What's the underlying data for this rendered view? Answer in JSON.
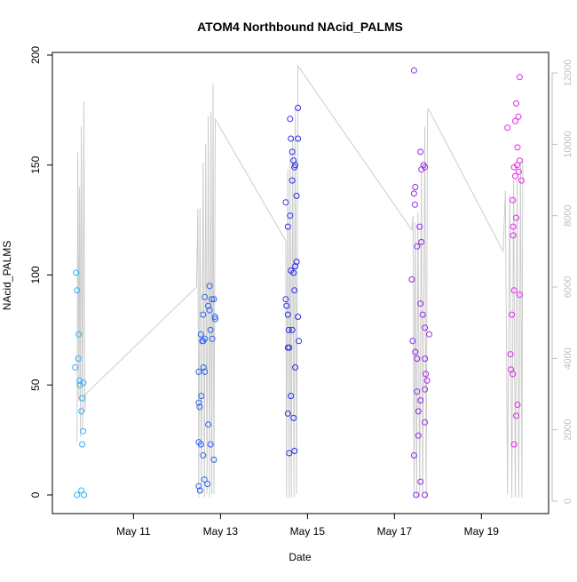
{
  "chart_data": {
    "type": "scatter",
    "title": "ATOM4 Northbound NAcid_PALMS",
    "xlabel": "Date",
    "ylabel": "NAcid_PALMS",
    "x_unit": "days, May 2017-style calendar day (May 11 = 11.0)",
    "xlim": [
      9.4,
      20.3
    ],
    "ylim": [
      0,
      200
    ],
    "y_ticks": [
      0,
      50,
      100,
      150,
      200
    ],
    "x_ticks": [
      {
        "value": 11,
        "label": "May 11"
      },
      {
        "value": 13,
        "label": "May 13"
      },
      {
        "value": 15,
        "label": "May 15"
      },
      {
        "value": 17,
        "label": "May 17"
      },
      {
        "value": 19,
        "label": "May 19"
      }
    ],
    "right_axis": {
      "ylim": [
        0,
        12500
      ],
      "ticks": [
        0,
        2000,
        4000,
        6000,
        8000,
        10000,
        12000
      ],
      "color": "#bebebe",
      "line_color": "#cccccc"
    },
    "grid": false,
    "legend": "none",
    "point_color_scale": [
      "#29b6f6",
      "#2a2ae8",
      "#ee22ee"
    ],
    "series": [
      {
        "values": [
          [
            9.7,
            0
          ],
          [
            9.8,
            2
          ],
          [
            9.68,
            101
          ],
          [
            9.7,
            93
          ],
          [
            9.74,
            73
          ],
          [
            9.73,
            62
          ],
          [
            9.66,
            58
          ],
          [
            9.76,
            52
          ],
          [
            9.85,
            51
          ],
          [
            9.77,
            50
          ],
          [
            9.82,
            44
          ],
          [
            9.8,
            38
          ],
          [
            9.84,
            29
          ],
          [
            9.82,
            23
          ],
          [
            9.86,
            0
          ]
        ]
      },
      {
        "values": [
          [
            12.5,
            4
          ],
          [
            12.53,
            2
          ],
          [
            12.7,
            5
          ],
          [
            12.63,
            7
          ],
          [
            12.85,
            16
          ],
          [
            12.6,
            18
          ],
          [
            12.5,
            24
          ],
          [
            12.55,
            23
          ],
          [
            12.77,
            23
          ],
          [
            12.72,
            32
          ],
          [
            12.52,
            40
          ],
          [
            12.56,
            45
          ],
          [
            12.5,
            42
          ],
          [
            12.64,
            56
          ],
          [
            12.5,
            56
          ],
          [
            12.61,
            58
          ],
          [
            12.58,
            70
          ],
          [
            12.6,
            70
          ],
          [
            12.64,
            71
          ],
          [
            12.81,
            71
          ],
          [
            12.55,
            73
          ],
          [
            12.77,
            75
          ],
          [
            12.88,
            80
          ],
          [
            12.87,
            81
          ],
          [
            12.6,
            82
          ],
          [
            12.75,
            84
          ],
          [
            12.72,
            86
          ],
          [
            12.8,
            89
          ],
          [
            12.85,
            89
          ],
          [
            12.64,
            90
          ],
          [
            12.75,
            95
          ]
        ]
      },
      {
        "values": [
          [
            14.5,
            133
          ],
          [
            14.6,
            127
          ],
          [
            14.55,
            122
          ],
          [
            14.5,
            89
          ],
          [
            14.55,
            82
          ],
          [
            14.52,
            86
          ],
          [
            14.55,
            67
          ],
          [
            14.58,
            67
          ],
          [
            14.57,
            75
          ],
          [
            14.65,
            75
          ],
          [
            14.55,
            37
          ],
          [
            14.62,
            45
          ],
          [
            14.58,
            19
          ],
          [
            14.68,
            35
          ],
          [
            14.7,
            20
          ],
          [
            14.72,
            58
          ],
          [
            14.7,
            93
          ],
          [
            14.68,
            101
          ],
          [
            14.62,
            102
          ],
          [
            14.72,
            104
          ],
          [
            14.75,
            106
          ],
          [
            14.8,
            70
          ],
          [
            14.78,
            81
          ],
          [
            14.65,
            143
          ],
          [
            14.7,
            149
          ],
          [
            14.72,
            150
          ],
          [
            14.68,
            152
          ],
          [
            14.65,
            156
          ],
          [
            14.62,
            162
          ],
          [
            14.78,
            162
          ],
          [
            14.6,
            171
          ],
          [
            14.78,
            176
          ],
          [
            14.75,
            136
          ]
        ]
      },
      {
        "values": [
          [
            17.45,
            193
          ],
          [
            17.6,
            156
          ],
          [
            17.7,
            149
          ],
          [
            17.62,
            148
          ],
          [
            17.67,
            150
          ],
          [
            17.48,
            140
          ],
          [
            17.45,
            137
          ],
          [
            17.47,
            132
          ],
          [
            17.58,
            122
          ],
          [
            17.62,
            115
          ],
          [
            17.52,
            113
          ],
          [
            17.4,
            98
          ],
          [
            17.6,
            87
          ],
          [
            17.65,
            82
          ],
          [
            17.7,
            76
          ],
          [
            17.8,
            73
          ],
          [
            17.42,
            70
          ],
          [
            17.48,
            65
          ],
          [
            17.52,
            62
          ],
          [
            17.7,
            62
          ],
          [
            17.72,
            55
          ],
          [
            17.75,
            52
          ],
          [
            17.7,
            48
          ],
          [
            17.52,
            47
          ],
          [
            17.6,
            43
          ],
          [
            17.55,
            38
          ],
          [
            17.7,
            33
          ],
          [
            17.55,
            27
          ],
          [
            17.45,
            18
          ],
          [
            17.6,
            6
          ],
          [
            17.5,
            0
          ],
          [
            17.7,
            0
          ]
        ]
      },
      {
        "values": [
          [
            19.88,
            190
          ],
          [
            19.8,
            178
          ],
          [
            19.85,
            172
          ],
          [
            19.78,
            170
          ],
          [
            19.6,
            167
          ],
          [
            19.83,
            158
          ],
          [
            19.88,
            152
          ],
          [
            19.75,
            149
          ],
          [
            19.82,
            150
          ],
          [
            19.92,
            143
          ],
          [
            19.78,
            145
          ],
          [
            19.86,
            147
          ],
          [
            19.72,
            134
          ],
          [
            19.8,
            126
          ],
          [
            19.73,
            122
          ],
          [
            19.73,
            118
          ],
          [
            19.75,
            93
          ],
          [
            19.88,
            91
          ],
          [
            19.7,
            82
          ],
          [
            19.67,
            64
          ],
          [
            19.68,
            57
          ],
          [
            19.72,
            55
          ],
          [
            19.83,
            41
          ],
          [
            19.8,
            36
          ],
          [
            19.75,
            23
          ]
        ]
      }
    ],
    "secondary_line": {
      "points": [
        [
          9.7,
          1650
        ],
        [
          9.72,
          9800
        ],
        [
          9.74,
          2800
        ],
        [
          9.76,
          8800
        ],
        [
          9.78,
          1800
        ],
        [
          9.8,
          10500
        ],
        [
          9.83,
          2000
        ],
        [
          9.86,
          11200
        ],
        [
          9.88,
          2500
        ],
        [
          9.9,
          3000
        ],
        [
          12.45,
          6000
        ],
        [
          12.48,
          8200
        ],
        [
          12.5,
          100
        ],
        [
          12.53,
          8200
        ],
        [
          12.56,
          200
        ],
        [
          12.6,
          9500
        ],
        [
          12.63,
          100
        ],
        [
          12.66,
          10000
        ],
        [
          12.69,
          200
        ],
        [
          12.72,
          10800
        ],
        [
          12.75,
          100
        ],
        [
          12.78,
          10900
        ],
        [
          12.8,
          200
        ],
        [
          12.83,
          11700
        ],
        [
          12.85,
          200
        ],
        [
          12.88,
          10700
        ],
        [
          14.5,
          7300
        ],
        [
          14.52,
          100
        ],
        [
          14.55,
          9300
        ],
        [
          14.58,
          100
        ],
        [
          14.6,
          9800
        ],
        [
          14.63,
          100
        ],
        [
          14.66,
          10200
        ],
        [
          14.69,
          100
        ],
        [
          14.72,
          11000
        ],
        [
          14.75,
          200
        ],
        [
          14.78,
          12200
        ],
        [
          17.4,
          7600
        ],
        [
          17.43,
          8000
        ],
        [
          17.45,
          100
        ],
        [
          17.48,
          7800
        ],
        [
          17.51,
          100
        ],
        [
          17.54,
          8100
        ],
        [
          17.58,
          100
        ],
        [
          17.62,
          9200
        ],
        [
          17.65,
          100
        ],
        [
          17.7,
          10500
        ],
        [
          17.73,
          100
        ],
        [
          17.76,
          10900
        ],
        [
          17.78,
          11000
        ],
        [
          19.5,
          7000
        ],
        [
          19.55,
          8700
        ],
        [
          19.6,
          200
        ],
        [
          19.65,
          8600
        ],
        [
          19.7,
          100
        ],
        [
          19.74,
          9000
        ],
        [
          19.78,
          100
        ],
        [
          19.82,
          9000
        ],
        [
          19.86,
          100
        ],
        [
          19.9,
          9500
        ],
        [
          19.93,
          100
        ],
        [
          19.95,
          9600
        ]
      ]
    }
  }
}
